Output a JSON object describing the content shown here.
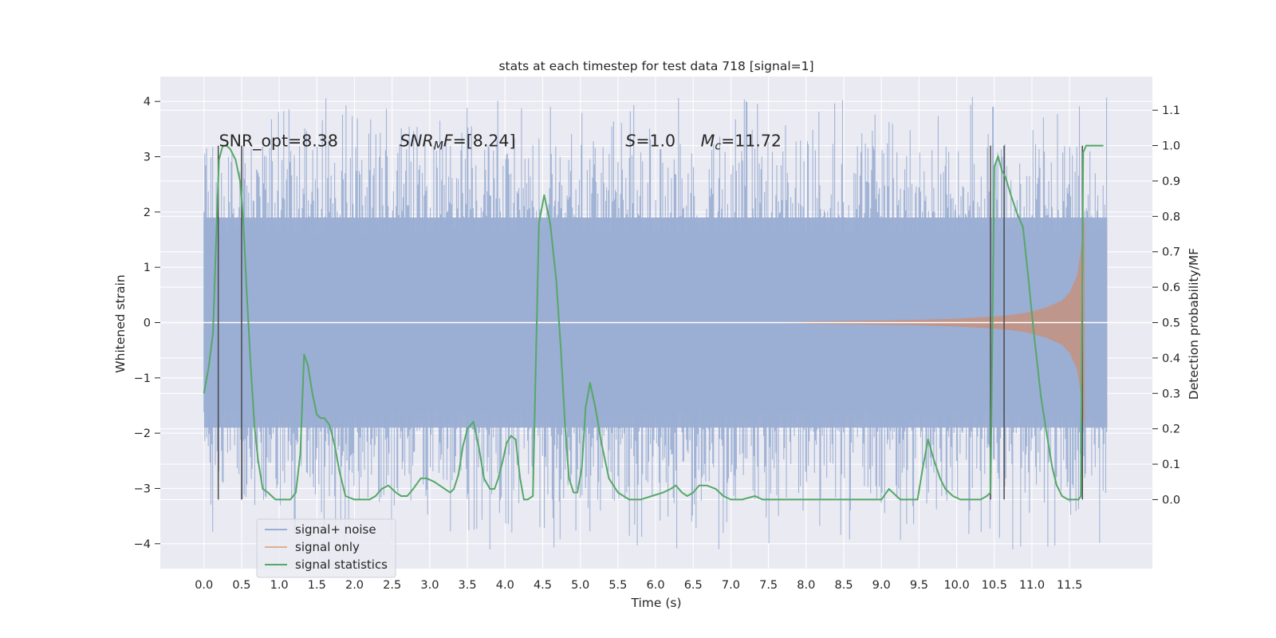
{
  "chart_data": {
    "type": "line",
    "title": "stats at each timestep for test data 718 [signal=1]",
    "xlabel": "Time (s)",
    "ylabel_left": "Whitened strain",
    "ylabel_right": "Detection probability/MF",
    "xlim": [
      -0.58,
      12.6
    ],
    "ylim_left": [
      -4.45,
      4.45
    ],
    "ylim_right": [
      -0.195,
      1.195
    ],
    "grid": true,
    "legend_position": "lower-left",
    "x_ticks": [
      "0.0",
      "0.5",
      "1.0",
      "1.5",
      "2.0",
      "2.5",
      "3.0",
      "3.5",
      "4.0",
      "4.5",
      "5.0",
      "5.5",
      "6.0",
      "6.5",
      "7.0",
      "7.5",
      "8.0",
      "8.5",
      "9.0",
      "9.5",
      "10.0",
      "10.5",
      "11.0",
      "11.5"
    ],
    "y_ticks_left": [
      "4",
      "3",
      "2",
      "1",
      "0",
      "−1",
      "−2",
      "−3",
      "−4"
    ],
    "y_ticks_right": [
      "1.1",
      "1.0",
      "0.9",
      "0.8",
      "0.7",
      "0.6",
      "0.5",
      "0.4",
      "0.3",
      "0.2",
      "0.1",
      "0.0"
    ],
    "annotations": [
      {
        "text": "SNR_opt=8.38",
        "x": 0.2,
        "y": 3.2
      },
      {
        "text": "$SNR_MF$=[8.24]",
        "x": 2.6,
        "y": 3.2
      },
      {
        "text": "$S$=1.0",
        "x": 5.6,
        "y": 3.2
      },
      {
        "text": "$M_c$=11.72",
        "x": 6.6,
        "y": 3.2
      }
    ],
    "vertical_lines": [
      {
        "x": 0.19,
        "y": [
          -3.2,
          3.2
        ]
      },
      {
        "x": 0.5,
        "y": [
          -3.2,
          3.2
        ]
      },
      {
        "x": 10.45,
        "y": [
          -3.2,
          3.2
        ]
      },
      {
        "x": 10.63,
        "y": [
          -3.2,
          3.2
        ]
      },
      {
        "x": 11.67,
        "y": [
          -3.2,
          3.2
        ]
      }
    ],
    "series": [
      {
        "name": "signal+ noise",
        "axis": "left",
        "color": "#9aaed3",
        "style": "dense noise band",
        "x_range": [
          0.0,
          12.0
        ],
        "core_band": [
          -1.9,
          1.9
        ],
        "peak_range": [
          -4.1,
          4.1
        ]
      },
      {
        "name": "signal only",
        "axis": "left",
        "color": "#dd8452",
        "style": "chirp envelope",
        "x": [
          0.0,
          7.5,
          8.0,
          8.5,
          9.0,
          9.5,
          10.0,
          10.5,
          10.8,
          11.0,
          11.2,
          11.4,
          11.5,
          11.6,
          11.65,
          11.7
        ],
        "envelope": [
          0.0,
          0.0,
          0.02,
          0.03,
          0.04,
          0.05,
          0.07,
          0.11,
          0.15,
          0.2,
          0.28,
          0.4,
          0.55,
          0.85,
          1.3,
          1.95
        ]
      },
      {
        "name": "signal statistics",
        "axis": "right",
        "color": "#55a868",
        "x": [
          0.0,
          0.06,
          0.12,
          0.16,
          0.2,
          0.25,
          0.3,
          0.35,
          0.42,
          0.48,
          0.52,
          0.57,
          0.62,
          0.67,
          0.72,
          0.78,
          0.85,
          0.95,
          1.05,
          1.15,
          1.22,
          1.28,
          1.33,
          1.38,
          1.44,
          1.5,
          1.55,
          1.6,
          1.67,
          1.74,
          1.8,
          1.88,
          2.0,
          2.1,
          2.2,
          2.28,
          2.36,
          2.45,
          2.55,
          2.62,
          2.7,
          2.78,
          2.88,
          2.96,
          3.06,
          3.13,
          3.2,
          3.27,
          3.32,
          3.38,
          3.44,
          3.5,
          3.58,
          3.65,
          3.72,
          3.8,
          3.86,
          3.91,
          3.97,
          4.02,
          4.08,
          4.14,
          4.2,
          4.25,
          4.3,
          4.37,
          4.45,
          4.52,
          4.6,
          4.68,
          4.74,
          4.8,
          4.85,
          4.91,
          4.96,
          5.02,
          5.07,
          5.13,
          5.2,
          5.28,
          5.38,
          5.5,
          5.65,
          5.8,
          5.95,
          6.1,
          6.2,
          6.27,
          6.35,
          6.42,
          6.5,
          6.58,
          6.68,
          6.8,
          6.9,
          7.0,
          7.15,
          7.32,
          7.42,
          7.52,
          7.7,
          8.0,
          8.5,
          8.9,
          9.0,
          9.1,
          9.25,
          9.35,
          9.42,
          9.48,
          9.55,
          9.62,
          9.7,
          9.78,
          9.85,
          9.95,
          10.05,
          10.2,
          10.32,
          10.4,
          10.45,
          10.5,
          10.55,
          10.6,
          10.65,
          10.72,
          10.8,
          10.88,
          10.95,
          11.02,
          11.12,
          11.2,
          11.27,
          11.33,
          11.4,
          11.48,
          11.55,
          11.62,
          11.65,
          11.68,
          11.72,
          11.8,
          11.95
        ],
        "y": [
          0.3,
          0.37,
          0.47,
          0.72,
          0.96,
          1.0,
          1.0,
          0.99,
          0.96,
          0.9,
          0.8,
          0.58,
          0.38,
          0.21,
          0.11,
          0.03,
          0.02,
          0.0,
          0.0,
          0.0,
          0.02,
          0.13,
          0.41,
          0.38,
          0.3,
          0.24,
          0.23,
          0.23,
          0.21,
          0.15,
          0.08,
          0.01,
          0.0,
          0.0,
          0.0,
          0.01,
          0.03,
          0.04,
          0.02,
          0.01,
          0.01,
          0.03,
          0.06,
          0.06,
          0.05,
          0.04,
          0.03,
          0.02,
          0.03,
          0.07,
          0.15,
          0.2,
          0.22,
          0.15,
          0.06,
          0.03,
          0.03,
          0.06,
          0.11,
          0.16,
          0.18,
          0.17,
          0.06,
          0.0,
          0.0,
          0.01,
          0.78,
          0.86,
          0.78,
          0.62,
          0.43,
          0.2,
          0.06,
          0.02,
          0.02,
          0.09,
          0.26,
          0.33,
          0.26,
          0.16,
          0.06,
          0.02,
          0.0,
          0.0,
          0.01,
          0.02,
          0.03,
          0.04,
          0.02,
          0.01,
          0.02,
          0.04,
          0.04,
          0.03,
          0.01,
          0.0,
          0.0,
          0.01,
          0.0,
          0.0,
          0.0,
          0.0,
          0.0,
          0.0,
          0.0,
          0.03,
          0.0,
          0.0,
          0.0,
          0.0,
          0.09,
          0.17,
          0.11,
          0.06,
          0.03,
          0.01,
          0.0,
          0.0,
          0.0,
          0.01,
          0.02,
          0.94,
          0.97,
          0.93,
          0.91,
          0.86,
          0.81,
          0.77,
          0.63,
          0.48,
          0.29,
          0.18,
          0.09,
          0.04,
          0.01,
          0.0,
          0.0,
          0.0,
          0.01,
          0.98,
          1.0,
          1.0,
          1.0
        ]
      }
    ]
  },
  "legend": [
    {
      "label": "signal+ noise",
      "color": "#9aaed3"
    },
    {
      "label": "signal only",
      "color": "#dd8452"
    },
    {
      "label": "signal statistics",
      "color": "#55a868"
    }
  ]
}
